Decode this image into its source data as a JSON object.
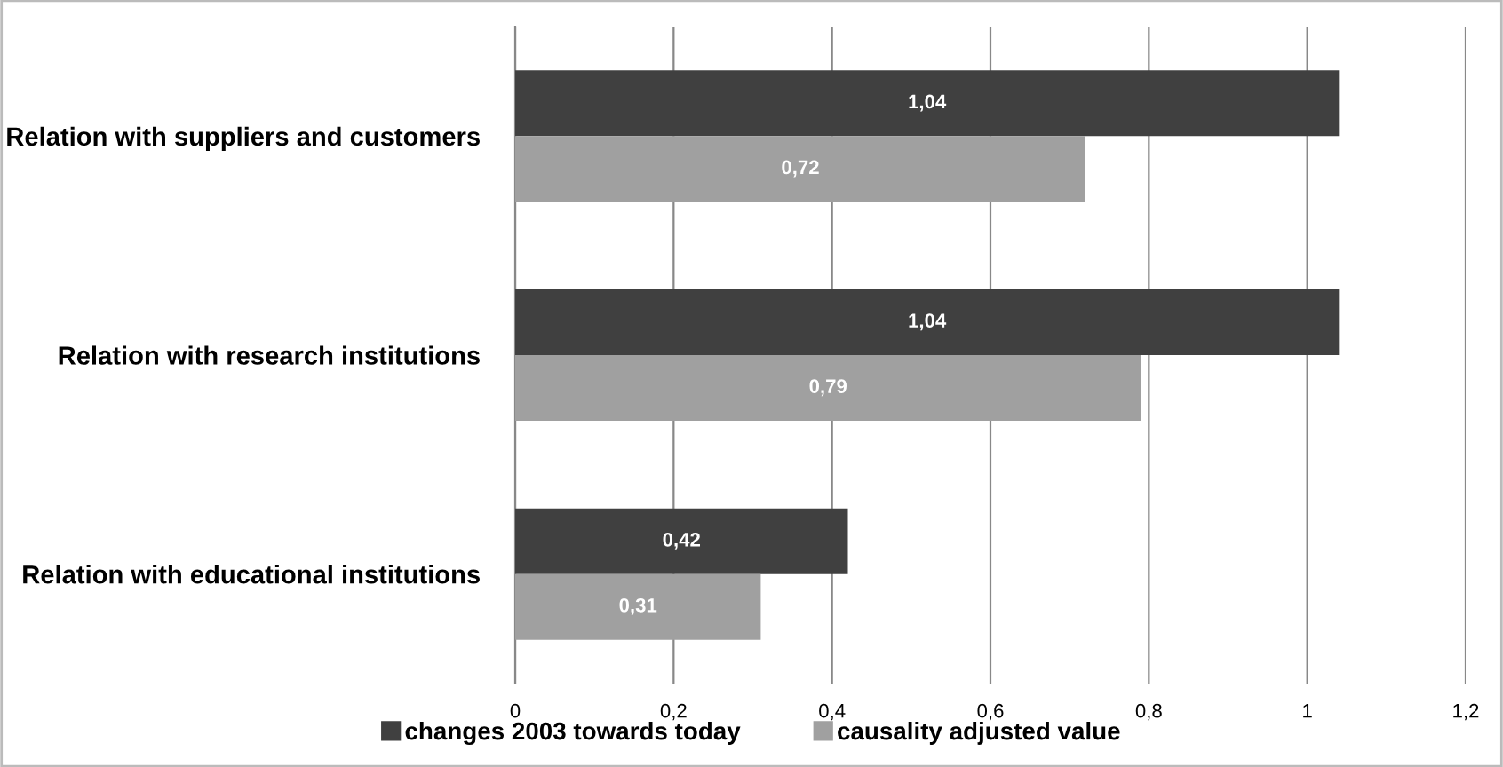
{
  "chart_data": {
    "type": "bar",
    "orientation": "horizontal",
    "categories": [
      "Relation with suppliers and customers",
      "Relation with research institutions",
      "Relation with educational institutions"
    ],
    "series": [
      {
        "name": "changes 2003 towards today",
        "color": "#404040",
        "values": [
          1.04,
          1.04,
          0.42
        ],
        "value_labels": [
          "1,04",
          "1,04",
          "0,42"
        ]
      },
      {
        "name": "causality adjusted value",
        "color": "#a0a0a0",
        "values": [
          0.72,
          0.79,
          0.31
        ],
        "value_labels": [
          "0,72",
          "0,79",
          "0,31"
        ]
      }
    ],
    "xlim": [
      0,
      1.2
    ],
    "xticks": [
      0,
      {
        "value": 0.2,
        "label": "0,2"
      },
      {
        "value": 0.4,
        "label": "0,4"
      },
      {
        "value": 0.6,
        "label": "0,6"
      },
      {
        "value": 0.8,
        "label": "0,8"
      },
      1,
      {
        "value": 1.2,
        "label": "1,2"
      }
    ],
    "grid": "x",
    "legend": "bottom"
  }
}
